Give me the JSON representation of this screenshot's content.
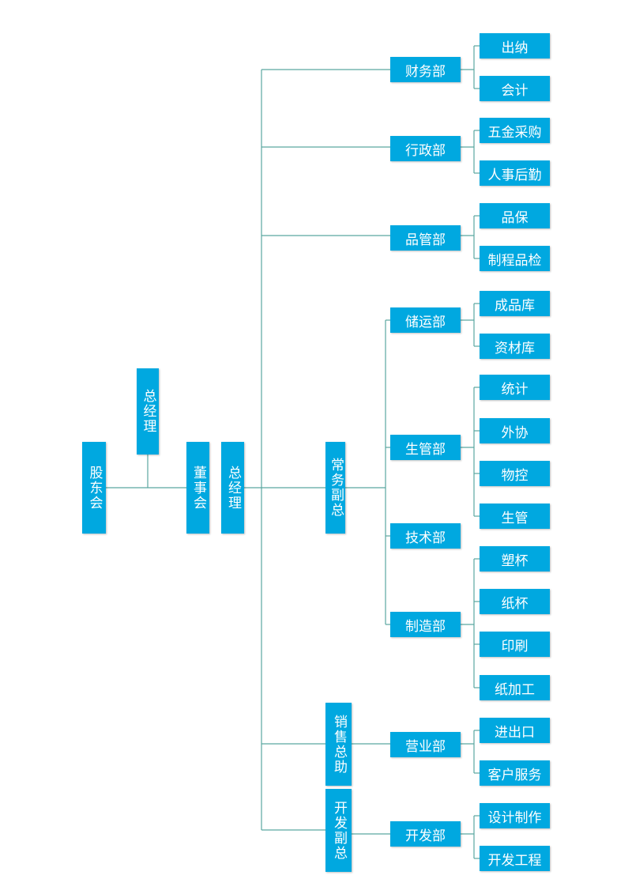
{
  "colors": {
    "box": "#00a8e0",
    "text": "#ffffff",
    "line": "#5aa6a0"
  },
  "nodes": {
    "gudonghui": "股东会",
    "zongjingli_top": "总经理",
    "dongshihui": "董事会",
    "zongjingli": "总经理",
    "changwu_fuzong": "常务副总",
    "xiaoshou_zongzhu": "销售总助",
    "kaifa_fuzong": "开发副总",
    "caiwubu": "财务部",
    "chuna": "出纳",
    "kuaiji": "会计",
    "xingzhengbu": "行政部",
    "wujin_caigou": "五金采购",
    "renshi_houqin": "人事后勤",
    "pinguanbu": "品管部",
    "pinbao": "品保",
    "zhicheng_pinjian": "制程品检",
    "chuyunbu": "储运部",
    "chengpinku": "成品库",
    "zicaiku": "资材库",
    "shengguanbu": "生管部",
    "tongji": "统计",
    "waixie": "外协",
    "wukong": "物控",
    "shengguan": "生管",
    "jishubu": "技术部",
    "zhizaobu": "制造部",
    "subei": "塑杯",
    "zhibei": "纸杯",
    "yinshua": "印刷",
    "zhijiagong": "纸加工",
    "yingyebu": "营业部",
    "jinchukou": "进出口",
    "kehu_fuwu": "客户服务",
    "kaifabu": "开发部",
    "sheji_zhizuo": "设计制作",
    "kaifa_gongcheng": "开发工程"
  }
}
